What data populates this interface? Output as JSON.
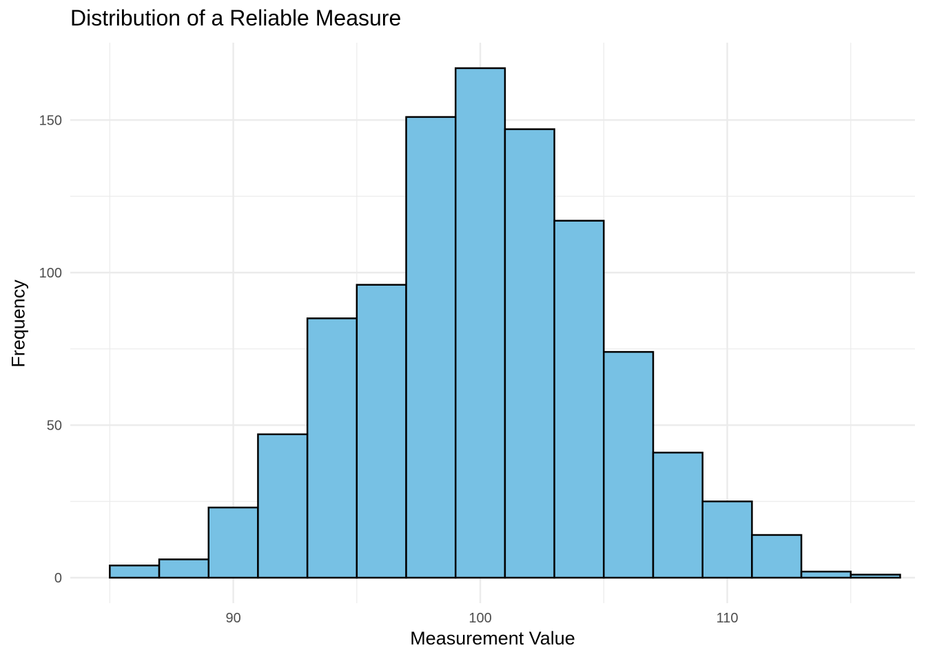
{
  "chart_data": {
    "type": "bar",
    "title": "Distribution of a Reliable Measure",
    "xlabel": "Measurement Value",
    "ylabel": "Frequency",
    "bin_width": 2,
    "bins": [
      {
        "x0": 85,
        "x1": 87,
        "count": 4
      },
      {
        "x0": 87,
        "x1": 89,
        "count": 6
      },
      {
        "x0": 89,
        "x1": 91,
        "count": 23
      },
      {
        "x0": 91,
        "x1": 93,
        "count": 47
      },
      {
        "x0": 93,
        "x1": 95,
        "count": 85
      },
      {
        "x0": 95,
        "x1": 97,
        "count": 96
      },
      {
        "x0": 97,
        "x1": 99,
        "count": 151
      },
      {
        "x0": 99,
        "x1": 101,
        "count": 167
      },
      {
        "x0": 101,
        "x1": 103,
        "count": 147
      },
      {
        "x0": 103,
        "x1": 105,
        "count": 117
      },
      {
        "x0": 105,
        "x1": 107,
        "count": 74
      },
      {
        "x0": 107,
        "x1": 109,
        "count": 41
      },
      {
        "x0": 109,
        "x1": 111,
        "count": 25
      },
      {
        "x0": 111,
        "x1": 113,
        "count": 14
      },
      {
        "x0": 113,
        "x1": 115,
        "count": 2
      },
      {
        "x0": 115,
        "x1": 117,
        "count": 1
      }
    ],
    "xlim": [
      83.4,
      117.6
    ],
    "ylim": [
      -8.35,
      175.35
    ],
    "x_ticks": [
      90,
      100,
      110
    ],
    "x_minor_ticks": [
      85,
      95,
      105,
      115
    ],
    "y_ticks": [
      0,
      50,
      100,
      150
    ],
    "y_minor_ticks": [
      25,
      75,
      125
    ],
    "bar_fill": "#77c1e4",
    "bar_outline": "#000000",
    "grid": true,
    "grid_color": "#ebebeb",
    "tick_label_color": "#4d4d4d"
  }
}
